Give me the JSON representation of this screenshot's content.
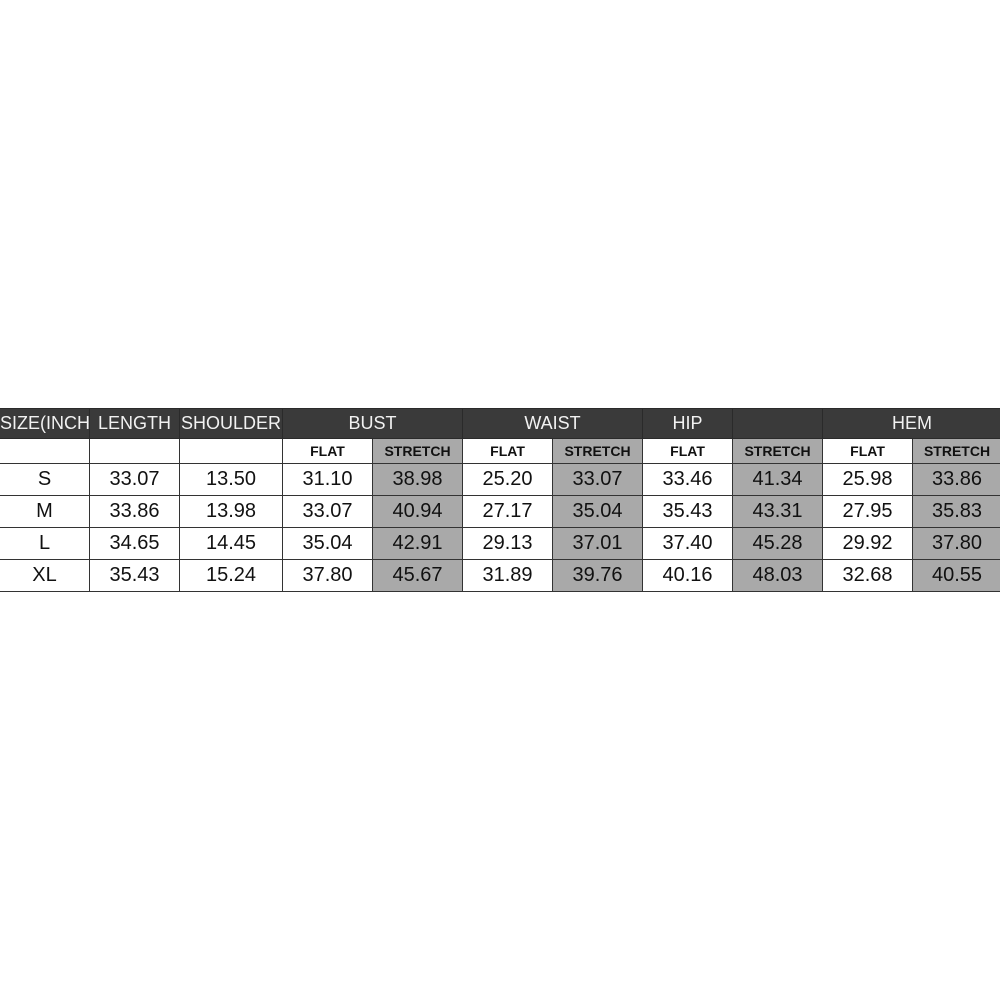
{
  "headers": [
    "SIZE(INCH)",
    "LENGTH",
    "SHOULDER",
    "BUST",
    "WAIST",
    "HIP",
    "",
    "HEM"
  ],
  "subheaders": [
    "",
    "",
    "",
    "FLAT",
    "STRETCH",
    "FLAT",
    "STRETCH",
    "FLAT",
    "STRETCH",
    "FLAT",
    "STRETCH"
  ],
  "rows": [
    [
      "S",
      "33.07",
      "13.50",
      "31.10",
      "38.98",
      "25.20",
      "33.07",
      "33.46",
      "41.34",
      "25.98",
      "33.86"
    ],
    [
      "M",
      "33.86",
      "13.98",
      "33.07",
      "40.94",
      "27.17",
      "35.04",
      "35.43",
      "43.31",
      "27.95",
      "35.83"
    ],
    [
      "L",
      "34.65",
      "14.45",
      "35.04",
      "42.91",
      "29.13",
      "37.01",
      "37.40",
      "45.28",
      "29.92",
      "37.80"
    ],
    [
      "XL",
      "35.43",
      "15.24",
      "37.80",
      "45.67",
      "31.89",
      "39.76",
      "40.16",
      "48.03",
      "32.68",
      "40.55"
    ]
  ],
  "colors": {
    "header_bg": "#3a3a3a",
    "stretch_bg": "#a9a9a9"
  }
}
